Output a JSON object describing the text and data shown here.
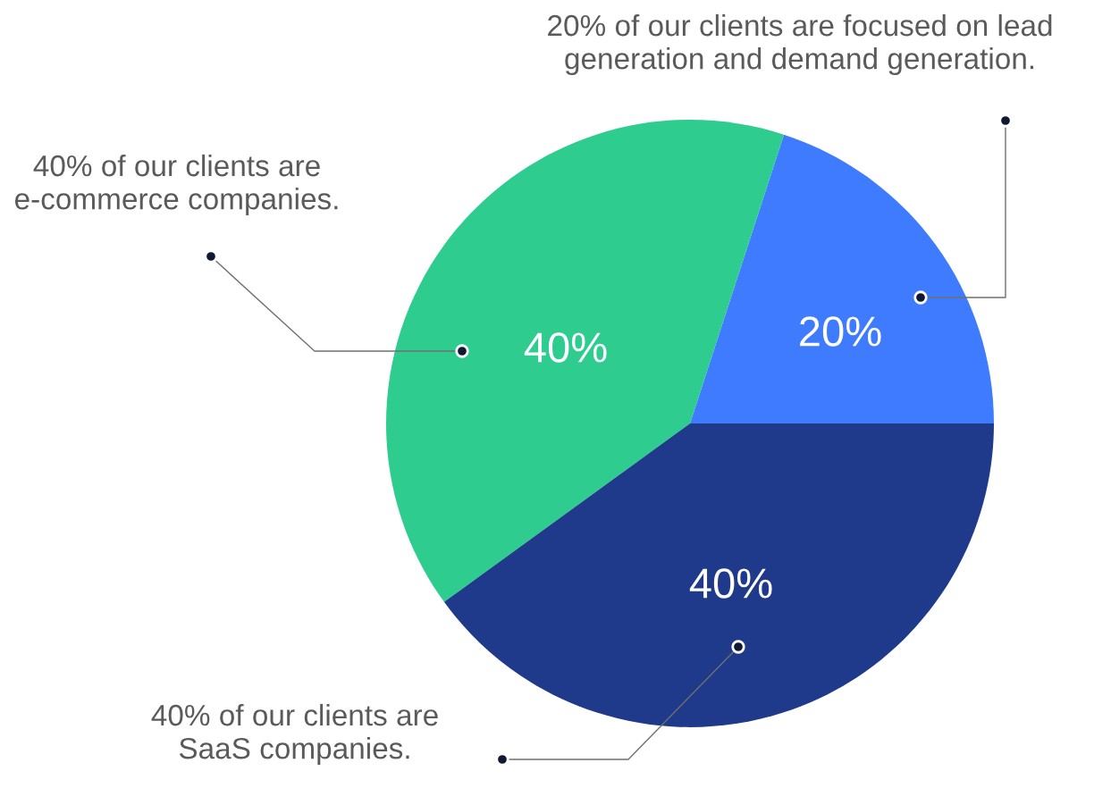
{
  "chart_data": {
    "type": "pie",
    "categories": [
      "20% of our clients are focused on lead\ngeneration and demand generation.",
      "40% of our clients are\ne-commerce companies.",
      "40% of our clients are\nSaaS companies."
    ],
    "values": [
      20,
      40,
      40
    ],
    "colors": [
      "#3f7bff",
      "#2ecc8f",
      "#1f3a8a"
    ],
    "value_labels": [
      "20%",
      "40%",
      "40%"
    ]
  }
}
